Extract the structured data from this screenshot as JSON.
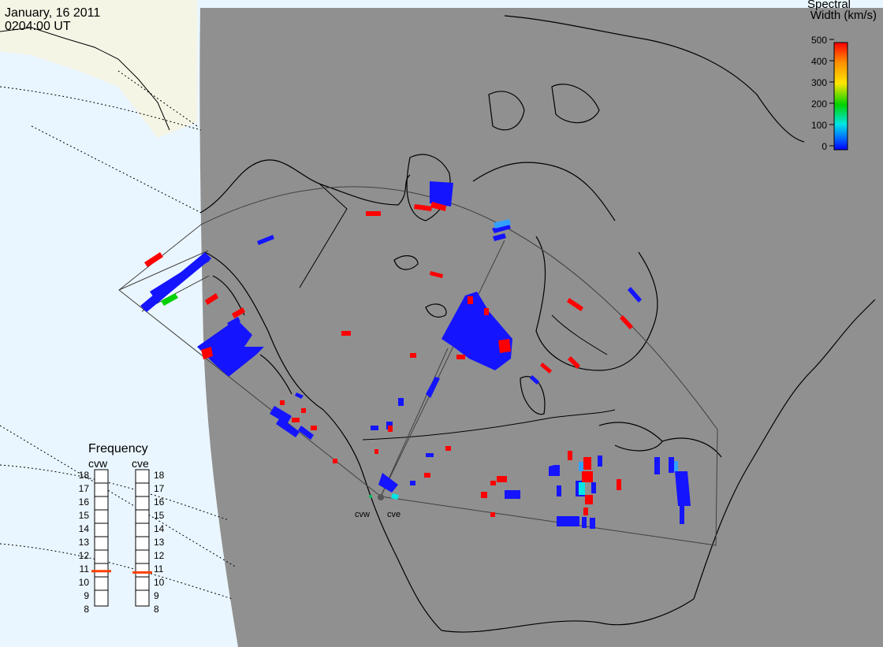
{
  "header": {
    "date": "January, 16 2011",
    "time": "0204:00 UT"
  },
  "colorbar": {
    "title_line1": "Spectral",
    "title_line2": "Width (km/s)",
    "ticks": [
      "500",
      "400",
      "300",
      "200",
      "100",
      "0"
    ],
    "colors": [
      "#ff0000",
      "#ff8c00",
      "#ffe600",
      "#00d200",
      "#00e6e6",
      "#0064ff",
      "#0000ff"
    ]
  },
  "frequency": {
    "title": "Frequency",
    "left_label": "cvw",
    "right_label": "cve",
    "ticks": [
      "18",
      "17",
      "16",
      "15",
      "14",
      "13",
      "12",
      "11",
      "10",
      "9",
      "8"
    ],
    "cvw_value": 10.9,
    "cve_value": 10.8,
    "marker_color": "#ff4000"
  },
  "radar_sites": [
    "cvw",
    "cve"
  ],
  "colors": {
    "land": "#909090",
    "night_water": "#eaf6ff",
    "day_land": "#f5f5e6",
    "high_width": "#ff0000",
    "low_width": "#1414ff"
  }
}
